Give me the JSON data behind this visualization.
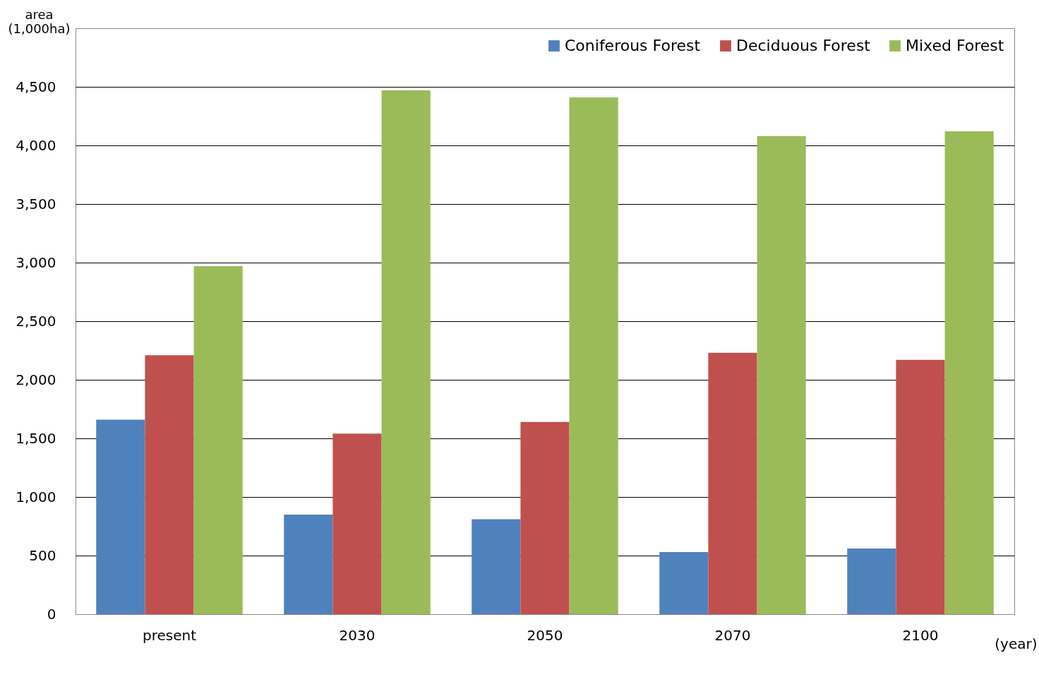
{
  "chart_data": {
    "type": "bar",
    "ylabel": "area (1,000ha)",
    "xlabel": "(year)",
    "categories": [
      "present",
      "2030",
      "2050",
      "2070",
      "2100"
    ],
    "series": [
      {
        "name": "Coniferous Forest",
        "color": "#4f81bd",
        "values": [
          1660,
          850,
          810,
          530,
          560
        ]
      },
      {
        "name": "Deciduous Forest",
        "color": "#c0504d",
        "values": [
          2210,
          1540,
          1640,
          2230,
          2170
        ]
      },
      {
        "name": "Mixed Forest",
        "color": "#9bbb59",
        "values": [
          2970,
          4470,
          4410,
          4080,
          4120
        ]
      }
    ],
    "ylim": [
      0,
      5000
    ],
    "yticks": [
      0,
      {
        "value": 500,
        "label": "500"
      },
      {
        "value": 1000,
        "label": "1,000"
      },
      {
        "value": 1500,
        "label": "1,500"
      },
      {
        "value": 2000,
        "label": "2,000"
      },
      {
        "value": 2500,
        "label": "2,500"
      },
      {
        "value": 3000,
        "label": "3,000"
      },
      {
        "value": 3500,
        "label": "3,500"
      },
      {
        "value": 4000,
        "label": "4,000"
      },
      {
        "value": 4500,
        "label": "4,500"
      }
    ],
    "grid": "y",
    "legend": "top right"
  }
}
